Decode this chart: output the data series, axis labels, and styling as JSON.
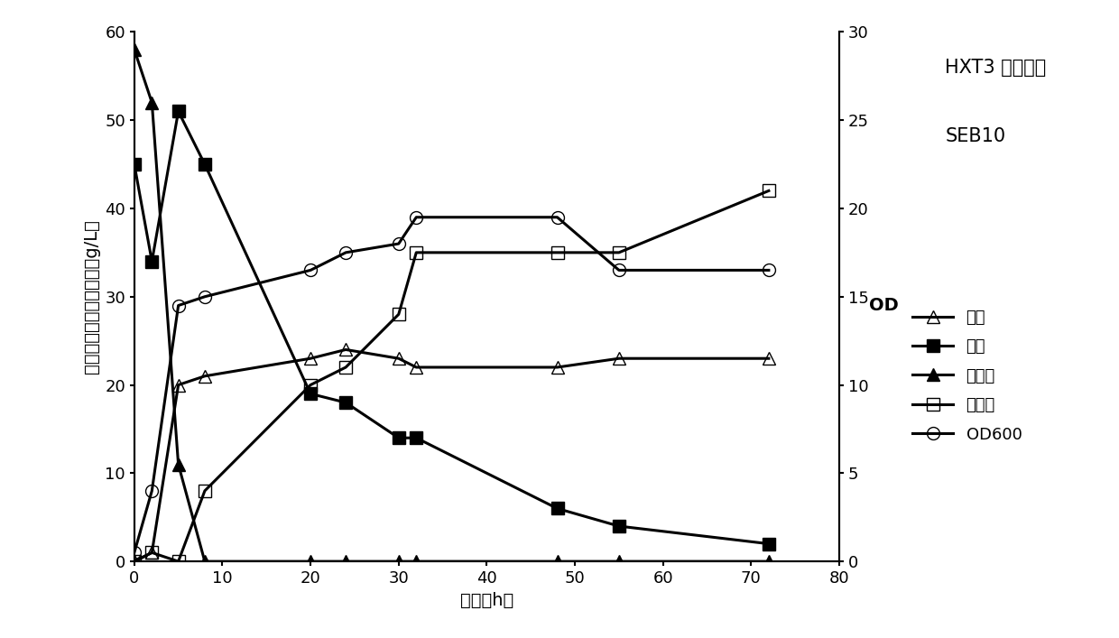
{
  "title_line1": "HXT3 突变菌株",
  "title_line2": "SEB10",
  "xlabel": "时间（h）",
  "ylabel_left": "糖，乙醇，木糖醇浓度（g/L）",
  "ylabel_right": "OD",
  "xlim": [
    0,
    80
  ],
  "ylim_left": [
    0,
    60
  ],
  "ylim_right": [
    0,
    30
  ],
  "yticks_left": [
    0,
    10,
    20,
    30,
    40,
    50,
    60
  ],
  "yticks_right": [
    0,
    5,
    10,
    15,
    20,
    25,
    30
  ],
  "xticks": [
    0,
    10,
    20,
    30,
    40,
    50,
    60,
    70,
    80
  ],
  "ethanol": {
    "x": [
      0,
      2,
      5,
      8,
      20,
      24,
      30,
      32,
      48,
      55,
      72
    ],
    "y": [
      0,
      1,
      20,
      21,
      23,
      24,
      23,
      22,
      22,
      23,
      23
    ],
    "label": "乙醇",
    "marker": "^",
    "fillstyle": "none"
  },
  "xylose": {
    "x": [
      0,
      2,
      5,
      8,
      20,
      24,
      30,
      32,
      48,
      55,
      72
    ],
    "y": [
      45,
      34,
      51,
      45,
      19,
      18,
      14,
      14,
      6,
      4,
      2
    ],
    "label": "木糖",
    "marker": "s",
    "fillstyle": "full"
  },
  "glucose": {
    "x": [
      0,
      2,
      5,
      8,
      20,
      24,
      30,
      32,
      48,
      55,
      72
    ],
    "y": [
      58,
      52,
      11,
      0,
      0,
      0,
      0,
      0,
      0,
      0,
      0
    ],
    "label": "葡萄糖",
    "marker": "^",
    "fillstyle": "full"
  },
  "xylitol": {
    "x": [
      0,
      2,
      5,
      8,
      20,
      24,
      30,
      32,
      48,
      55,
      72
    ],
    "y": [
      0,
      1,
      0,
      8,
      20,
      22,
      28,
      35,
      35,
      35,
      42
    ],
    "label": "木糖醇",
    "marker": "s",
    "fillstyle": "none"
  },
  "od600": {
    "x": [
      0,
      2,
      5,
      8,
      20,
      24,
      30,
      32,
      48,
      55,
      72
    ],
    "y": [
      0.5,
      4,
      14.5,
      15,
      16.5,
      17.5,
      18,
      19.5,
      19.5,
      16.5,
      16.5
    ],
    "label": "OD600",
    "marker": "o",
    "fillstyle": "none"
  }
}
